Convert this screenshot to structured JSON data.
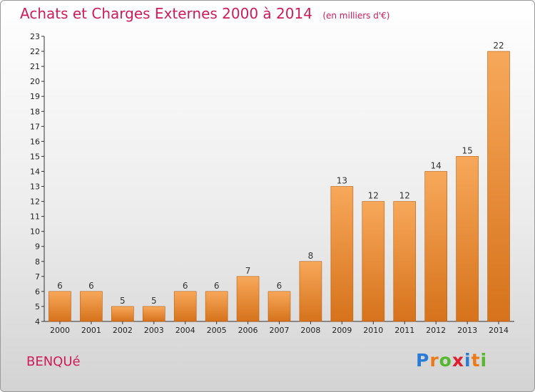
{
  "header": {
    "title": "Achats et Charges Externes 2000 à 2014",
    "unit": "(en milliers d'€)"
  },
  "footer": {
    "commune": "BENQUé",
    "logo_letters": [
      "P",
      "r",
      "o",
      "x",
      "i",
      "t",
      "i"
    ],
    "logo_colors": [
      "#2a7ad8",
      "#ec7a18",
      "#55b82e",
      "#e01e2e",
      "#2a7ad8",
      "#ec7a18",
      "#55b82e"
    ]
  },
  "chart_data": {
    "type": "bar",
    "title": "Achats et Charges Externes 2000 à 2014",
    "subtitle": "(en milliers d'€)",
    "categories": [
      "2000",
      "2001",
      "2002",
      "2003",
      "2004",
      "2005",
      "2006",
      "2007",
      "2008",
      "2009",
      "2010",
      "2011",
      "2012",
      "2013",
      "2014"
    ],
    "values": [
      6,
      6,
      5,
      5,
      6,
      6,
      7,
      6,
      8,
      13,
      12,
      12,
      14,
      15,
      22
    ],
    "ylim": [
      4,
      23
    ],
    "y_ticks": [
      4,
      5,
      6,
      7,
      8,
      9,
      10,
      11,
      12,
      13,
      14,
      15,
      16,
      17,
      18,
      19,
      20,
      21,
      22,
      23
    ],
    "grid": false,
    "colors": {
      "bar_light": "#f7a85a",
      "bar_dark": "#d6721b",
      "bar_edge": "#b85f12"
    }
  }
}
